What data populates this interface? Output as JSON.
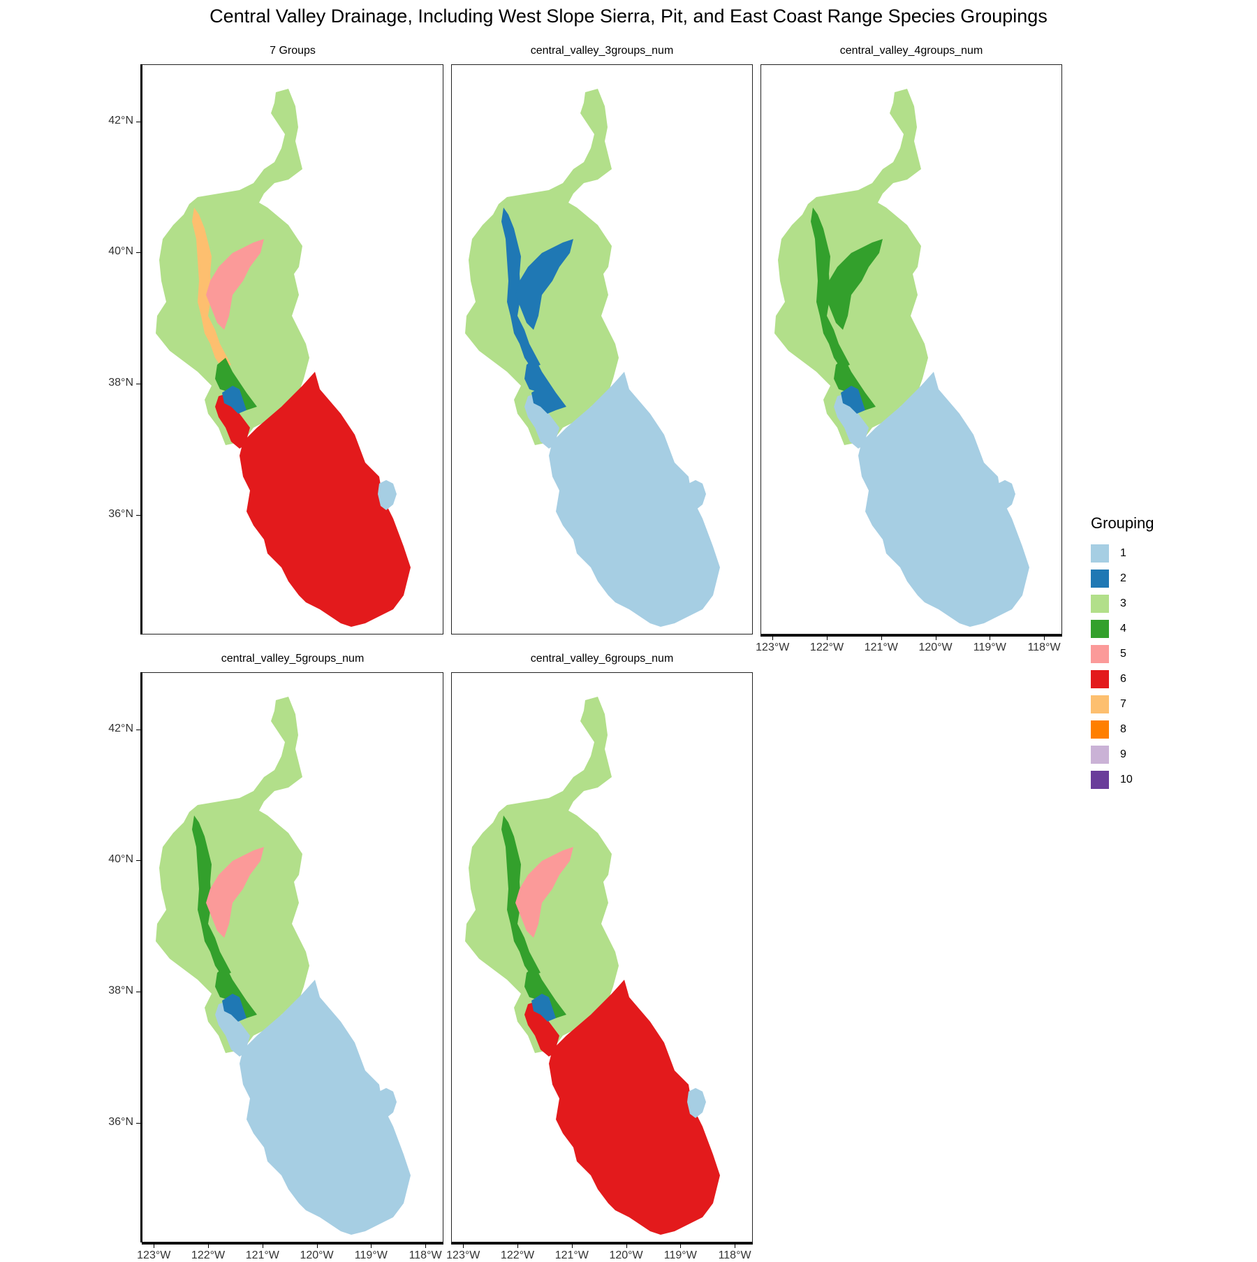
{
  "title": "Central Valley Drainage, Including West Slope Sierra, Pit, and East Coast Range Species Groupings",
  "legend": {
    "title": "Grouping",
    "items": [
      {
        "label": "1",
        "color": "#a6cee3"
      },
      {
        "label": "2",
        "color": "#1f78b4"
      },
      {
        "label": "3",
        "color": "#b2df8a"
      },
      {
        "label": "4",
        "color": "#33a02c"
      },
      {
        "label": "5",
        "color": "#fb9a99"
      },
      {
        "label": "6",
        "color": "#e31a1c"
      },
      {
        "label": "7",
        "color": "#fdbf6f"
      },
      {
        "label": "8",
        "color": "#ff7f00"
      },
      {
        "label": "9",
        "color": "#cab2d6"
      },
      {
        "label": "10",
        "color": "#6a3d9a"
      }
    ]
  },
  "axes": {
    "y_ticks": [
      "42°N",
      "40°N",
      "38°N",
      "36°N"
    ],
    "x_ticks": [
      "123°W",
      "122°W",
      "121°W",
      "120°W",
      "119°W",
      "118°W"
    ]
  },
  "panels": [
    {
      "name": "7 Groups",
      "regions": {
        "north": "3",
        "corridor_upper": "7",
        "corridor_mid": "5",
        "corridor_lower": "4",
        "delta": "2",
        "bay": "6",
        "south": "6",
        "lake": "1"
      }
    },
    {
      "name": "central_valley_3groups_num",
      "regions": {
        "north": "3",
        "corridor_upper": "2",
        "corridor_mid": "2",
        "corridor_lower": "2",
        "delta": "2",
        "bay": "1",
        "south": "1",
        "lake": "1"
      }
    },
    {
      "name": "central_valley_4groups_num",
      "regions": {
        "north": "3",
        "corridor_upper": "4",
        "corridor_mid": "4",
        "corridor_lower": "4",
        "delta": "2",
        "bay": "1",
        "south": "1",
        "lake": "1"
      }
    },
    {
      "name": "central_valley_5groups_num",
      "regions": {
        "north": "3",
        "corridor_upper": "4",
        "corridor_mid": "5",
        "corridor_lower": "4",
        "delta": "2",
        "bay": "1",
        "south": "1",
        "lake": "1"
      }
    },
    {
      "name": "central_valley_6groups_num",
      "regions": {
        "north": "3",
        "corridor_upper": "4",
        "corridor_mid": "5",
        "corridor_lower": "4",
        "delta": "2",
        "bay": "6",
        "south": "6",
        "lake": "1"
      }
    }
  ]
}
